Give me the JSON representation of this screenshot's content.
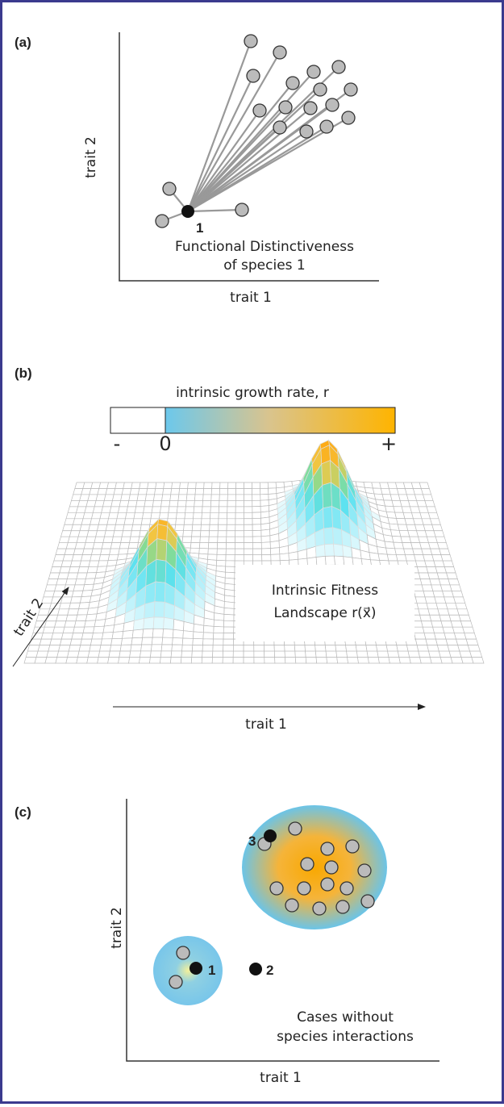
{
  "panel_a": {
    "label": "(a)",
    "y_axis": "trait 2",
    "x_axis": "trait 1",
    "species": "1",
    "caption": [
      "Functional Distinctiveness",
      "of species 1"
    ]
  },
  "panel_b": {
    "label": "(b)",
    "colorbar_title": "intrinsic growth rate, r",
    "colorbar_ticks": [
      "-",
      "0",
      "+"
    ],
    "y_axis": "trait 2",
    "x_axis": "trait 1",
    "caption": [
      "Intrinsic Fitness",
      "Landscape r(x⃗)"
    ]
  },
  "panel_c": {
    "label": "(c)",
    "species": [
      "3",
      "1",
      "2"
    ],
    "caption": [
      "Cases without",
      "species interactions"
    ],
    "y_axis": "trait 2",
    "x_axis": "trait 1"
  }
}
